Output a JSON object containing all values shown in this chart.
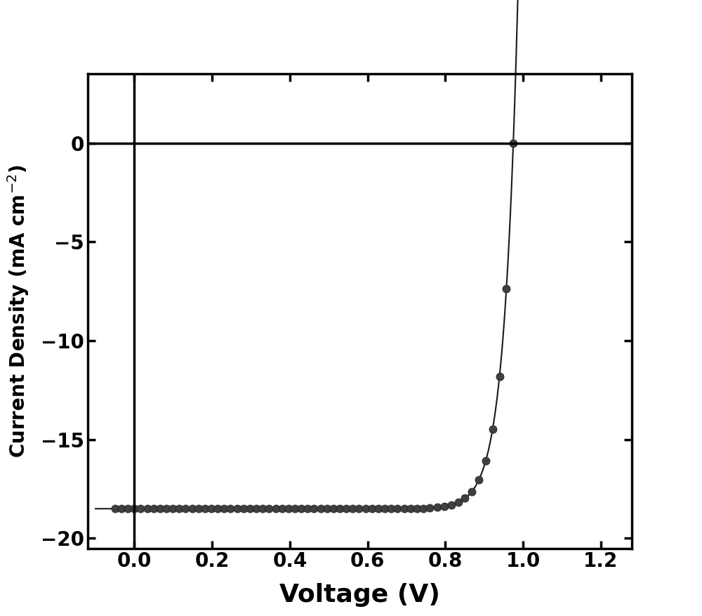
{
  "xlabel": "Voltage (V)",
  "ylabel_line1": "Current Density",
  "ylabel_line2": "(mA cm$^{-2}$)",
  "xlim": [
    -0.12,
    1.28
  ],
  "ylim": [
    -20.5,
    3.5
  ],
  "xticks": [
    0.0,
    0.2,
    0.4,
    0.6,
    0.8,
    1.0,
    1.2
  ],
  "yticks": [
    0,
    -5,
    -10,
    -15,
    -20
  ],
  "Jsc": -18.5,
  "Voc": 0.975,
  "n_ideality": 1.35,
  "line_color": "#1a1a1a",
  "marker_color": "#404040",
  "marker_size": 8,
  "line_width": 1.5,
  "xlabel_fontsize": 26,
  "ylabel_fontsize": 20,
  "tick_fontsize": 20,
  "axis_linewidth": 2.5,
  "background_color": "#ffffff",
  "vline_x": 0.0,
  "hline_y": 0.0
}
